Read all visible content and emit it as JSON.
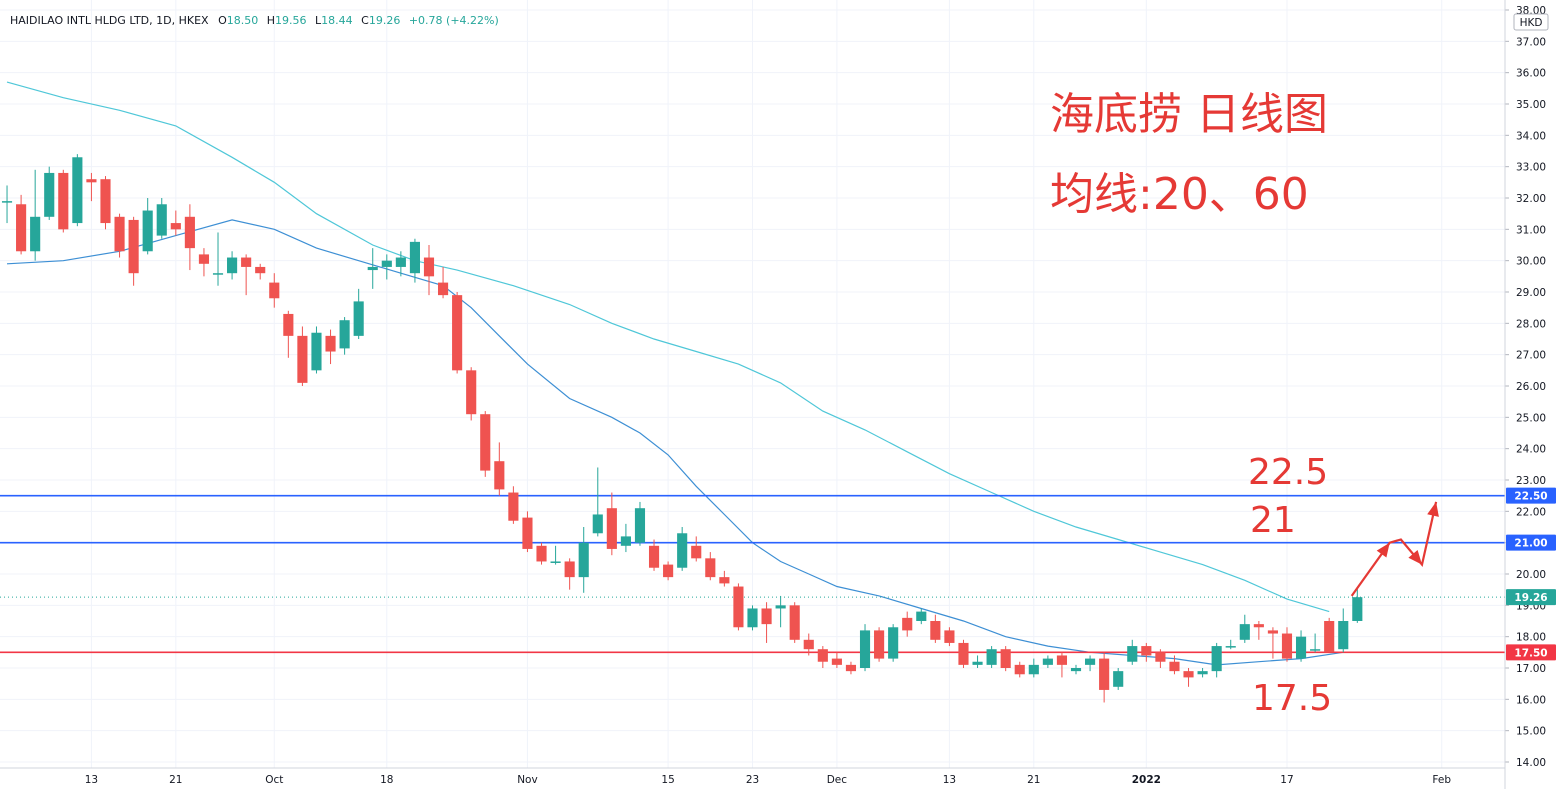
{
  "header": {
    "symbol": "HAIDILAO INTL HLDG LTD, 1D, HKEX",
    "open_label": "O",
    "open": "18.50",
    "high_label": "H",
    "high": "19.56",
    "low_label": "L",
    "low": "18.44",
    "close_label": "C",
    "close": "19.26",
    "change": "+0.78 (+4.22%)"
  },
  "currency": "HKD",
  "annotations": {
    "title": "海底捞 日线图",
    "ma_note": "均线:20、60",
    "level_upper": "22.5",
    "level_mid": "21",
    "level_lower": "17.5"
  },
  "colors": {
    "up": "#26a69a",
    "down": "#ef5350",
    "ma20": "#3d8fd4",
    "ma60": "#4fc7d8",
    "resistance": "#2962ff",
    "support": "#f23645",
    "annotation": "#e53935",
    "price_tag": "#26a69a"
  },
  "chart_data": {
    "type": "candlestick",
    "title": "海底捞 日线图",
    "series_ma": [
      "MA20",
      "MA60"
    ],
    "ylim": [
      14.0,
      38.0
    ],
    "y_ticks": [
      "14.00",
      "15.00",
      "16.00",
      "17.00",
      "18.00",
      "19.00",
      "20.00",
      "21.00",
      "22.00",
      "23.00",
      "24.00",
      "25.00",
      "26.00",
      "27.00",
      "28.00",
      "29.00",
      "30.00",
      "31.00",
      "32.00",
      "33.00",
      "34.00",
      "35.00",
      "36.00",
      "37.00",
      "38.00"
    ],
    "x_ticks": [
      {
        "label": "13",
        "index": 6,
        "bold": false
      },
      {
        "label": "21",
        "index": 12,
        "bold": false
      },
      {
        "label": "Oct",
        "index": 19,
        "bold": false
      },
      {
        "label": "18",
        "index": 27,
        "bold": false
      },
      {
        "label": "Nov",
        "index": 37,
        "bold": false
      },
      {
        "label": "15",
        "index": 47,
        "bold": false
      },
      {
        "label": "23",
        "index": 53,
        "bold": false
      },
      {
        "label": "Dec",
        "index": 59,
        "bold": false
      },
      {
        "label": "13",
        "index": 67,
        "bold": false
      },
      {
        "label": "21",
        "index": 73,
        "bold": false
      },
      {
        "label": "2022",
        "index": 81,
        "bold": true
      },
      {
        "label": "17",
        "index": 91,
        "bold": false
      },
      {
        "label": "Feb",
        "index": 102,
        "bold": false
      }
    ],
    "x_range": [
      -0.5,
      106.5
    ],
    "candles": [
      [
        31.9,
        31.9,
        32.4,
        31.2
      ],
      [
        31.8,
        30.3,
        32.1,
        30.2
      ],
      [
        30.3,
        31.4,
        32.9,
        30.0
      ],
      [
        31.4,
        32.8,
        33.0,
        31.3
      ],
      [
        32.8,
        31.0,
        32.9,
        30.9
      ],
      [
        31.2,
        33.3,
        33.4,
        31.1
      ],
      [
        32.6,
        32.5,
        32.8,
        31.9
      ],
      [
        32.6,
        31.2,
        32.7,
        31.0
      ],
      [
        31.4,
        30.3,
        31.5,
        30.1
      ],
      [
        31.3,
        29.6,
        31.4,
        29.2
      ],
      [
        30.3,
        31.6,
        32.0,
        30.2
      ],
      [
        30.8,
        31.8,
        32.0,
        30.7
      ],
      [
        31.2,
        31.0,
        31.6,
        30.8
      ],
      [
        31.4,
        30.4,
        31.8,
        29.7
      ],
      [
        30.2,
        29.9,
        30.4,
        29.5
      ],
      [
        29.6,
        29.6,
        30.9,
        29.2
      ],
      [
        29.6,
        30.1,
        30.3,
        29.4
      ],
      [
        30.1,
        29.8,
        30.2,
        28.9
      ],
      [
        29.8,
        29.6,
        29.9,
        29.4
      ],
      [
        29.3,
        28.8,
        29.6,
        28.5
      ],
      [
        28.3,
        27.6,
        28.4,
        26.9
      ],
      [
        27.6,
        26.1,
        27.9,
        26.0
      ],
      [
        26.5,
        27.7,
        27.9,
        26.4
      ],
      [
        27.6,
        27.1,
        27.8,
        26.7
      ],
      [
        27.2,
        28.1,
        28.2,
        27.0
      ],
      [
        27.6,
        28.7,
        29.1,
        27.5
      ],
      [
        29.7,
        29.8,
        30.4,
        29.1
      ],
      [
        29.8,
        30.0,
        30.2,
        29.4
      ],
      [
        29.8,
        30.1,
        30.3,
        29.5
      ],
      [
        29.6,
        30.6,
        30.7,
        29.3
      ],
      [
        30.1,
        29.5,
        30.5,
        28.9
      ],
      [
        29.3,
        28.9,
        29.8,
        28.8
      ],
      [
        28.9,
        26.5,
        29.0,
        26.4
      ],
      [
        26.5,
        25.1,
        26.6,
        24.9
      ],
      [
        25.1,
        23.3,
        25.2,
        23.1
      ],
      [
        23.6,
        22.7,
        24.2,
        22.5
      ],
      [
        22.6,
        21.7,
        22.8,
        21.6
      ],
      [
        21.8,
        20.8,
        22.0,
        20.7
      ],
      [
        20.9,
        20.4,
        21.0,
        20.3
      ],
      [
        20.4,
        20.4,
        20.9,
        20.3
      ],
      [
        20.4,
        19.9,
        20.5,
        19.5
      ],
      [
        19.9,
        21.0,
        21.5,
        19.4
      ],
      [
        21.3,
        21.9,
        23.4,
        21.2
      ],
      [
        22.1,
        20.8,
        22.6,
        20.6
      ],
      [
        20.9,
        21.2,
        21.6,
        20.7
      ],
      [
        21.0,
        22.1,
        22.3,
        20.9
      ],
      [
        20.9,
        20.2,
        21.1,
        20.1
      ],
      [
        20.3,
        19.9,
        20.4,
        19.8
      ],
      [
        20.2,
        21.3,
        21.5,
        20.1
      ],
      [
        20.9,
        20.5,
        21.2,
        20.4
      ],
      [
        20.5,
        19.9,
        20.7,
        19.8
      ],
      [
        19.9,
        19.7,
        20.1,
        19.6
      ],
      [
        19.6,
        18.3,
        19.7,
        18.2
      ],
      [
        18.3,
        18.9,
        19.0,
        18.2
      ],
      [
        18.9,
        18.4,
        19.1,
        17.8
      ],
      [
        18.9,
        19.0,
        19.3,
        18.3
      ],
      [
        19.0,
        17.9,
        19.1,
        17.8
      ],
      [
        17.9,
        17.6,
        18.1,
        17.4
      ],
      [
        17.6,
        17.2,
        17.7,
        17.0
      ],
      [
        17.3,
        17.1,
        17.5,
        17.0
      ],
      [
        17.1,
        16.9,
        17.2,
        16.8
      ],
      [
        17.0,
        18.2,
        18.4,
        16.9
      ],
      [
        18.2,
        17.3,
        18.3,
        17.2
      ],
      [
        17.3,
        18.3,
        18.4,
        17.2
      ],
      [
        18.6,
        18.2,
        18.8,
        18.0
      ],
      [
        18.5,
        18.8,
        18.9,
        18.4
      ],
      [
        18.5,
        17.9,
        18.7,
        17.8
      ],
      [
        18.2,
        17.8,
        18.3,
        17.7
      ],
      [
        17.8,
        17.1,
        17.9,
        17.0
      ],
      [
        17.1,
        17.2,
        17.4,
        17.0
      ],
      [
        17.1,
        17.6,
        17.7,
        17.0
      ],
      [
        17.6,
        17.0,
        17.7,
        16.9
      ],
      [
        17.1,
        16.8,
        17.2,
        16.7
      ],
      [
        16.8,
        17.1,
        17.3,
        16.7
      ],
      [
        17.1,
        17.3,
        17.4,
        17.0
      ],
      [
        17.4,
        17.1,
        17.5,
        16.7
      ],
      [
        16.9,
        17.0,
        17.1,
        16.8
      ],
      [
        17.1,
        17.3,
        17.4,
        16.9
      ],
      [
        17.3,
        16.3,
        17.5,
        15.9
      ],
      [
        16.4,
        16.9,
        17.0,
        16.3
      ],
      [
        17.2,
        17.7,
        17.9,
        17.1
      ],
      [
        17.7,
        17.4,
        17.8,
        17.2
      ],
      [
        17.5,
        17.2,
        17.6,
        17.0
      ],
      [
        17.2,
        16.9,
        17.4,
        16.8
      ],
      [
        16.9,
        16.7,
        17.0,
        16.4
      ],
      [
        16.8,
        16.9,
        17.0,
        16.7
      ],
      [
        16.9,
        17.7,
        17.8,
        16.7
      ],
      [
        17.7,
        17.7,
        17.9,
        17.6
      ],
      [
        17.9,
        18.4,
        18.7,
        17.8
      ],
      [
        18.4,
        18.3,
        18.5,
        17.9
      ],
      [
        18.2,
        18.1,
        18.3,
        17.3
      ],
      [
        18.1,
        17.3,
        18.3,
        17.2
      ],
      [
        17.3,
        18.0,
        18.2,
        17.2
      ],
      [
        17.6,
        17.6,
        18.1,
        17.5
      ],
      [
        18.5,
        17.5,
        18.6,
        17.6
      ],
      [
        17.6,
        18.5,
        18.9,
        17.5
      ],
      [
        18.5,
        19.26,
        19.56,
        18.44
      ]
    ],
    "ma20_points": [
      [
        0,
        29.9
      ],
      [
        4,
        30.0
      ],
      [
        8,
        30.3
      ],
      [
        12,
        30.8
      ],
      [
        16,
        31.3
      ],
      [
        19,
        31.0
      ],
      [
        22,
        30.4
      ],
      [
        25,
        30.0
      ],
      [
        28,
        29.6
      ],
      [
        31,
        29.2
      ],
      [
        33,
        28.5
      ],
      [
        35,
        27.6
      ],
      [
        37,
        26.7
      ],
      [
        40,
        25.6
      ],
      [
        43,
        25.0
      ],
      [
        45,
        24.5
      ],
      [
        47,
        23.8
      ],
      [
        49,
        22.8
      ],
      [
        51,
        21.9
      ],
      [
        53,
        21.0
      ],
      [
        55,
        20.4
      ],
      [
        57,
        20.0
      ],
      [
        59,
        19.6
      ],
      [
        62,
        19.3
      ],
      [
        65,
        18.9
      ],
      [
        68,
        18.5
      ],
      [
        71,
        18.0
      ],
      [
        74,
        17.7
      ],
      [
        77,
        17.5
      ],
      [
        80,
        17.4
      ],
      [
        83,
        17.3
      ],
      [
        86,
        17.1
      ],
      [
        89,
        17.2
      ],
      [
        92,
        17.3
      ],
      [
        95,
        17.5
      ]
    ],
    "ma60_points": [
      [
        0,
        35.7
      ],
      [
        4,
        35.2
      ],
      [
        8,
        34.8
      ],
      [
        12,
        34.3
      ],
      [
        16,
        33.3
      ],
      [
        19,
        32.5
      ],
      [
        22,
        31.5
      ],
      [
        26,
        30.5
      ],
      [
        29,
        30.0
      ],
      [
        32,
        29.7
      ],
      [
        36,
        29.2
      ],
      [
        40,
        28.6
      ],
      [
        43,
        28.0
      ],
      [
        46,
        27.5
      ],
      [
        49,
        27.1
      ],
      [
        52,
        26.7
      ],
      [
        55,
        26.1
      ],
      [
        58,
        25.2
      ],
      [
        61,
        24.6
      ],
      [
        64,
        23.9
      ],
      [
        67,
        23.2
      ],
      [
        70,
        22.6
      ],
      [
        73,
        22.0
      ],
      [
        76,
        21.5
      ],
      [
        79,
        21.1
      ],
      [
        82,
        20.7
      ],
      [
        85,
        20.3
      ],
      [
        88,
        19.8
      ],
      [
        91,
        19.2
      ],
      [
        94,
        18.8
      ]
    ],
    "hlines": [
      {
        "value": 22.5,
        "label": "22.50",
        "color": "#2962ff"
      },
      {
        "value": 21.0,
        "label": "21.00",
        "color": "#2962ff"
      },
      {
        "value": 17.5,
        "label": "17.50",
        "color": "#f23645"
      }
    ],
    "last_price": {
      "value": 19.26,
      "label": "19.26"
    },
    "projection_path": [
      [
        95.6,
        19.3
      ],
      [
        98.3,
        21.0
      ],
      [
        99.1,
        21.1
      ],
      [
        100.6,
        20.3
      ],
      [
        101.6,
        22.3
      ]
    ]
  }
}
